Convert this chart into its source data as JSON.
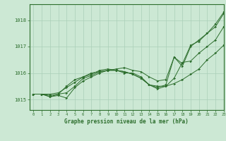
{
  "title": "Graphe pression niveau de la mer (hPa)",
  "background_color": "#cce8d4",
  "grid_color": "#aacfb8",
  "line_color": "#2d6e2d",
  "xlim": [
    -0.5,
    23
  ],
  "ylim": [
    1014.6,
    1018.6
  ],
  "yticks": [
    1015,
    1016,
    1017,
    1018
  ],
  "xticks": [
    0,
    1,
    2,
    3,
    4,
    5,
    6,
    7,
    8,
    9,
    10,
    11,
    12,
    13,
    14,
    15,
    16,
    17,
    18,
    19,
    20,
    21,
    22,
    23
  ],
  "series": [
    {
      "x": [
        0,
        1,
        2,
        3,
        4,
        5,
        6,
        7,
        8,
        9,
        10,
        11,
        12,
        13,
        14,
        15,
        16,
        17,
        18,
        19,
        20,
        21,
        22,
        23
      ],
      "y": [
        1015.2,
        1015.2,
        1015.1,
        1015.2,
        1015.5,
        1015.75,
        1015.85,
        1016.0,
        1016.05,
        1016.1,
        1016.15,
        1016.2,
        1016.1,
        1016.05,
        1015.85,
        1015.7,
        1015.75,
        1016.6,
        1016.35,
        1017.05,
        1017.2,
        1017.5,
        1017.75,
        1018.25
      ]
    },
    {
      "x": [
        0,
        1,
        2,
        3,
        4,
        5,
        6,
        7,
        8,
        9,
        10,
        11,
        12,
        13,
        14,
        15,
        16,
        17,
        18,
        19,
        20,
        21,
        22,
        23
      ],
      "y": [
        1015.2,
        1015.2,
        1015.1,
        1015.15,
        1015.05,
        1015.45,
        1015.7,
        1015.85,
        1016.0,
        1016.1,
        1016.1,
        1016.05,
        1015.95,
        1015.8,
        1015.55,
        1015.4,
        1015.5,
        1015.6,
        1015.75,
        1015.95,
        1016.15,
        1016.5,
        1016.75,
        1017.05
      ]
    },
    {
      "x": [
        0,
        1,
        2,
        3,
        4,
        5,
        6,
        7,
        8,
        9,
        10,
        11,
        12,
        13,
        14,
        15,
        16,
        17,
        18,
        19,
        20,
        21,
        22,
        23
      ],
      "y": [
        1015.2,
        1015.2,
        1015.15,
        1015.2,
        1015.25,
        1015.5,
        1015.8,
        1015.9,
        1016.05,
        1016.1,
        1016.1,
        1016.0,
        1016.0,
        1015.85,
        1015.55,
        1015.5,
        1015.5,
        1015.8,
        1016.4,
        1016.45,
        1016.75,
        1017.0,
        1017.25,
        1017.75
      ]
    },
    {
      "x": [
        0,
        1,
        2,
        3,
        4,
        5,
        6,
        7,
        8,
        9,
        10,
        11,
        12,
        13,
        14,
        15,
        16,
        17,
        18,
        19,
        20,
        21,
        22,
        23
      ],
      "y": [
        1015.2,
        1015.2,
        1015.2,
        1015.25,
        1015.45,
        1015.65,
        1015.85,
        1015.95,
        1016.1,
        1016.15,
        1016.1,
        1016.05,
        1015.95,
        1015.8,
        1015.55,
        1015.45,
        1015.55,
        1016.6,
        1016.25,
        1017.0,
        1017.25,
        1017.5,
        1017.85,
        1018.3
      ]
    }
  ]
}
